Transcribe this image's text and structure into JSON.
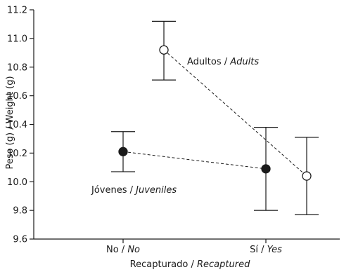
{
  "chart_data": {
    "type": "line",
    "xlabel": {
      "es": "Recapturado",
      "sep": " / ",
      "en": "Recaptured"
    },
    "ylabel": "Peso (g) / Weight (g)",
    "ylim": [
      9.6,
      11.2
    ],
    "yticks": [
      9.6,
      9.8,
      10.0,
      10.2,
      10.4,
      10.6,
      10.8,
      11.0,
      11.2
    ],
    "ytick_labels": [
      "9.6",
      "9.8",
      "10.0",
      "10.2",
      "10.4",
      "10.6",
      "10.8",
      "11.0",
      "11.2"
    ],
    "categories": [
      {
        "es": "No",
        "sep": " / ",
        "en": "No"
      },
      {
        "es": "Sí",
        "sep": " / ",
        "en": "Yes"
      }
    ],
    "grid": false,
    "series": [
      {
        "name": "Jóvenes / Juveniles",
        "name_es": "Jóvenes",
        "name_en": "Juveniles",
        "marker": "filled-circle",
        "values": [
          10.21,
          10.09
        ],
        "error_low": [
          10.07,
          9.8
        ],
        "error_high": [
          10.35,
          10.38
        ]
      },
      {
        "name": "Adultos / Adults",
        "name_es": "Adultos",
        "name_en": "Adults",
        "marker": "open-circle",
        "values": [
          10.92,
          10.04
        ],
        "error_low": [
          10.71,
          9.77
        ],
        "error_high": [
          11.12,
          10.31
        ]
      }
    ],
    "colors": {
      "ink": "#1a1a1a",
      "background": "#ffffff"
    }
  }
}
